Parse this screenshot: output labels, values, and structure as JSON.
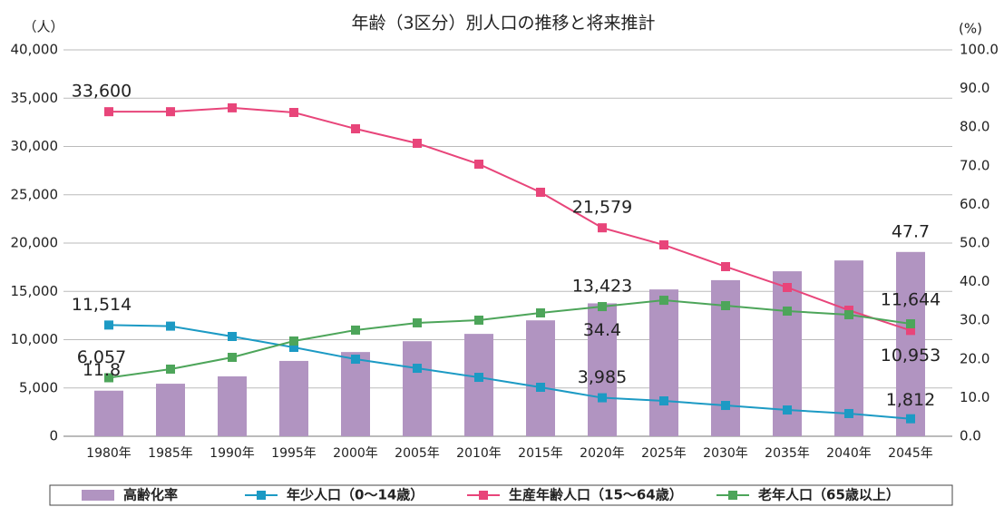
{
  "chart_data": {
    "type": "bar-line",
    "title": "年齢（3区分）別人口の推移と将来推計",
    "y_label": "（人）",
    "y2_label": "(%)",
    "categories": [
      "1980年",
      "1985年",
      "1990年",
      "1995年",
      "2000年",
      "2005年",
      "2010年",
      "2015年",
      "2020年",
      "2025年",
      "2030年",
      "2035年",
      "2040年",
      "2045年"
    ],
    "ylim": [
      0,
      40000
    ],
    "yticks": [
      0,
      {
        "value": 5000,
        "label": "5,000"
      },
      {
        "value": 10000,
        "label": "10,000"
      },
      {
        "value": 15000,
        "label": "15,000"
      },
      {
        "value": 20000,
        "label": "20,000"
      },
      {
        "value": 25000,
        "label": "25,000"
      },
      {
        "value": 30000,
        "label": "30,000"
      },
      {
        "value": 35000,
        "label": "35,000"
      },
      {
        "value": 40000,
        "label": "40,000"
      }
    ],
    "y2lim": [
      0,
      100
    ],
    "y2ticks": [
      {
        "value": 0,
        "label": "0.0"
      },
      {
        "value": 10,
        "label": "10.0"
      },
      {
        "value": 20,
        "label": "20.0"
      },
      {
        "value": 30,
        "label": "30.0"
      },
      {
        "value": 40,
        "label": "40.0"
      },
      {
        "value": 50,
        "label": "50.0"
      },
      {
        "value": 60,
        "label": "60.0"
      },
      {
        "value": 70,
        "label": "70.0"
      },
      {
        "value": 80,
        "label": "80.0"
      },
      {
        "value": 90,
        "label": "90.0"
      },
      {
        "value": 100,
        "label": "100.0"
      }
    ],
    "grid": true,
    "legend": "bottom",
    "series": [
      {
        "name": "高齢化率",
        "type": "bar",
        "axis": "y2",
        "color": "#b194c1",
        "values": [
          11.8,
          13.6,
          15.5,
          19.5,
          21.8,
          24.6,
          26.5,
          30.0,
          34.4,
          38.0,
          40.4,
          42.7,
          45.5,
          47.7
        ],
        "value_labels": [
          "11.8",
          null,
          null,
          null,
          null,
          null,
          null,
          null,
          "34.4",
          null,
          null,
          null,
          null,
          "47.7"
        ]
      },
      {
        "name": "年少人口（0～14歳）",
        "type": "line",
        "color": "#1c9ac4",
        "values": [
          11514,
          11400,
          10330,
          9200,
          7980,
          7040,
          6100,
          5070,
          3985,
          3660,
          3190,
          2720,
          2350,
          1812
        ],
        "value_labels": [
          "11,514",
          null,
          null,
          null,
          null,
          null,
          null,
          null,
          "3,985",
          null,
          null,
          null,
          null,
          "1,812"
        ]
      },
      {
        "name": "生産年齢人口（15～64歳）",
        "type": "line",
        "color": "#e8457a",
        "values": [
          33600,
          33600,
          34000,
          33520,
          31830,
          30330,
          28170,
          25260,
          21579,
          19810,
          17560,
          15400,
          13050,
          10953
        ],
        "value_labels": [
          "33,600",
          null,
          null,
          null,
          null,
          null,
          null,
          null,
          "21,579",
          null,
          null,
          null,
          null,
          "10,953"
        ]
      },
      {
        "name": "老年人口（65歳以上）",
        "type": "line",
        "color": "#4da55a",
        "values": [
          6057,
          6950,
          8170,
          9860,
          10990,
          11740,
          12020,
          12770,
          13423,
          14080,
          13520,
          12960,
          12580,
          11644
        ],
        "value_labels": [
          "6,057",
          null,
          null,
          null,
          null,
          null,
          null,
          null,
          "13,423",
          null,
          null,
          null,
          null,
          "11,644"
        ]
      }
    ]
  }
}
